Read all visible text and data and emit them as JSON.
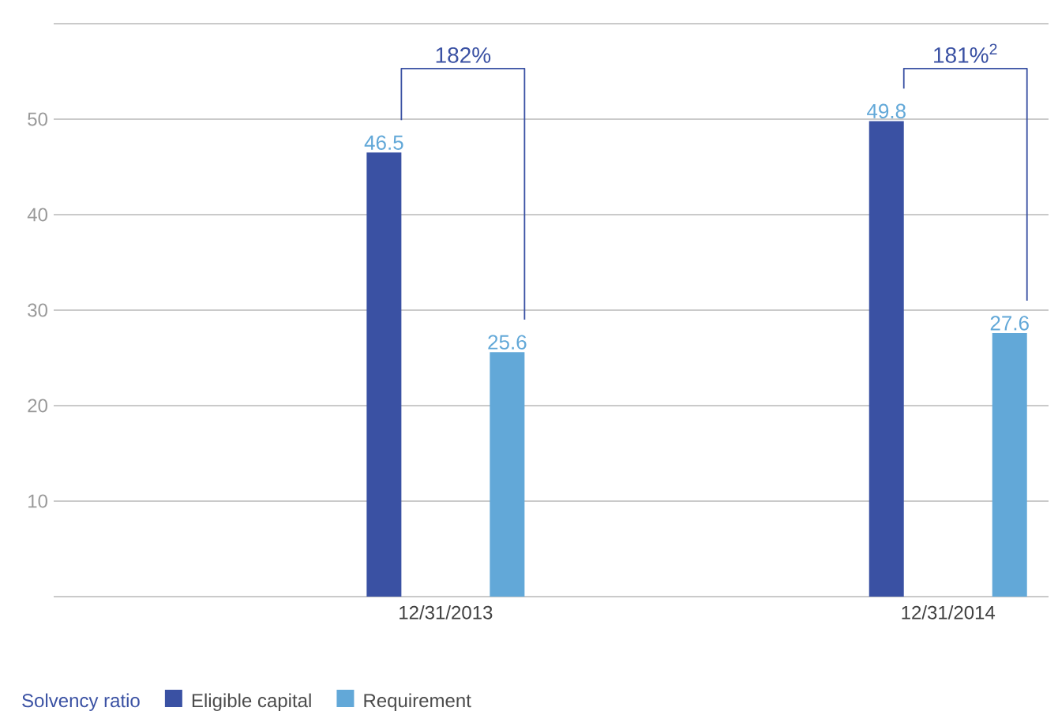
{
  "chart_data": {
    "type": "bar",
    "categories": [
      "12/31/2013",
      "12/31/2014"
    ],
    "series": [
      {
        "name": "Eligible capital",
        "color": "#3a51a3",
        "values": [
          46.5,
          49.8
        ]
      },
      {
        "name": "Requirement",
        "color": "#62a8d8",
        "values": [
          25.6,
          27.6
        ]
      }
    ],
    "ylim": [
      0,
      60
    ],
    "yticks": [
      {
        "value": 0,
        "label": null
      },
      10,
      20,
      30,
      40,
      50,
      {
        "value": 60,
        "label": null
      }
    ],
    "grid": "y",
    "data_labels": true,
    "legend": "bottom left",
    "legend_title": "Solvency ratio",
    "annotations": [
      "182%",
      "181%$^{2}$"
    ]
  }
}
